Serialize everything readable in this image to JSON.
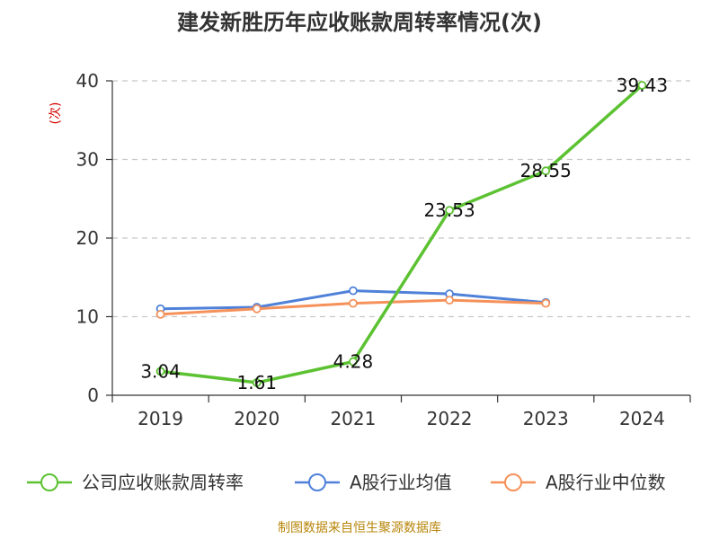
{
  "chart_data": {
    "type": "line",
    "title": "建发新胜历年应收账款周转率情况(次)",
    "ylabel": "(次)",
    "xlabel": "",
    "categories": [
      "2019",
      "2020",
      "2021",
      "2022",
      "2023",
      "2024"
    ],
    "ylim": [
      0,
      40
    ],
    "yticks": [
      0,
      10,
      20,
      30,
      40
    ],
    "grid": true,
    "legend_position": "bottom",
    "series": [
      {
        "name": "公司应收账款周转率",
        "color": "#5cc232",
        "values": [
          3.04,
          1.61,
          4.28,
          23.53,
          28.55,
          39.43
        ],
        "labels": [
          "3.04",
          "1.61",
          "4.28",
          "23.53",
          "28.55",
          "39.43"
        ]
      },
      {
        "name": "A股行业均值",
        "color": "#4f81d9",
        "values": [
          11.0,
          11.2,
          13.3,
          12.9,
          11.8,
          null
        ]
      },
      {
        "name": "A股行业中位数",
        "color": "#f5915a",
        "values": [
          10.3,
          11.0,
          11.7,
          12.1,
          11.7,
          null
        ]
      }
    ]
  },
  "source": "制图数据来自恒生聚源数据库"
}
